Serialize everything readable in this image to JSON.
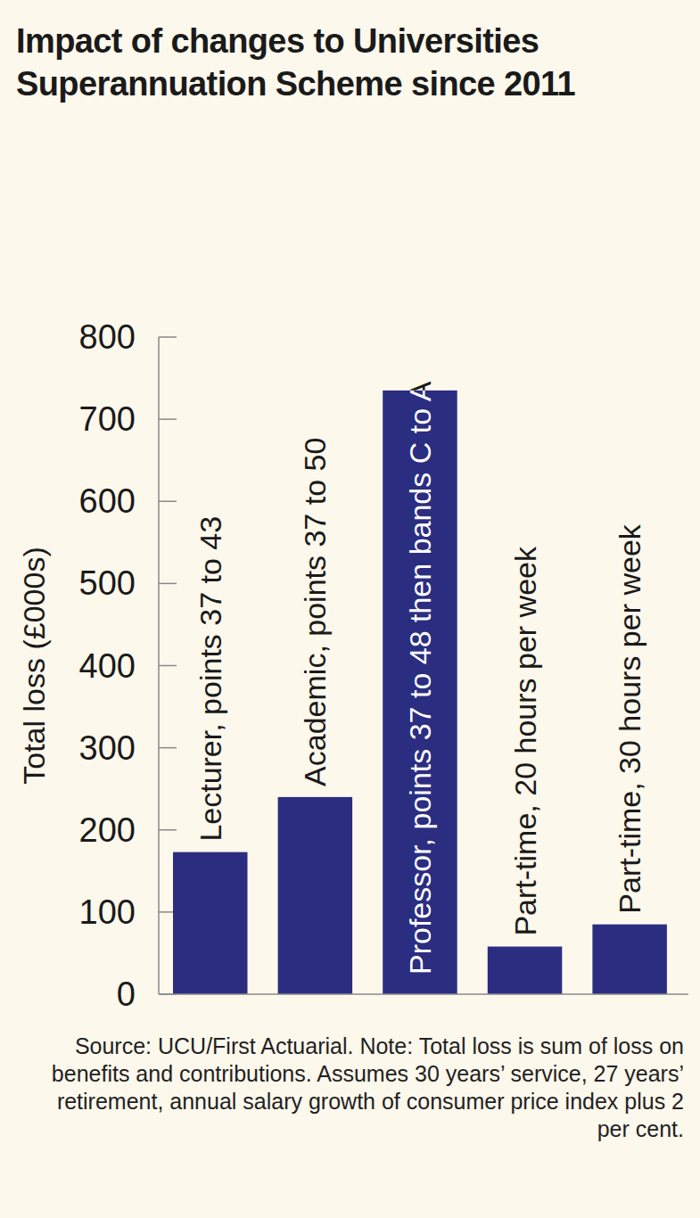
{
  "chart_data": {
    "type": "bar",
    "title": "Impact of changes to Universities Superannuation Scheme since 2011",
    "y_label": "Total loss (£000s)",
    "categories": [
      "Lecturer, points 37 to 43",
      "Academic, points 37 to 50",
      "Professor, points 37 to 48 then bands C to A",
      "Part-time, 20 hours per week",
      "Part-time, 30 hours per week"
    ],
    "values": [
      173,
      240,
      735,
      58,
      85
    ],
    "color": "#2b2e80",
    "ylim": [
      0,
      800
    ],
    "yticks": [
      0,
      100,
      200,
      300,
      400,
      500,
      600,
      700,
      800
    ],
    "grid": false,
    "source": "Source: UCU/First Actuarial. Note: Total loss is sum of loss on benefits and contributions. Assumes 30 years’ service, 27 years’ retirement, annual salary growth of consumer price index plus 2 per cent."
  }
}
